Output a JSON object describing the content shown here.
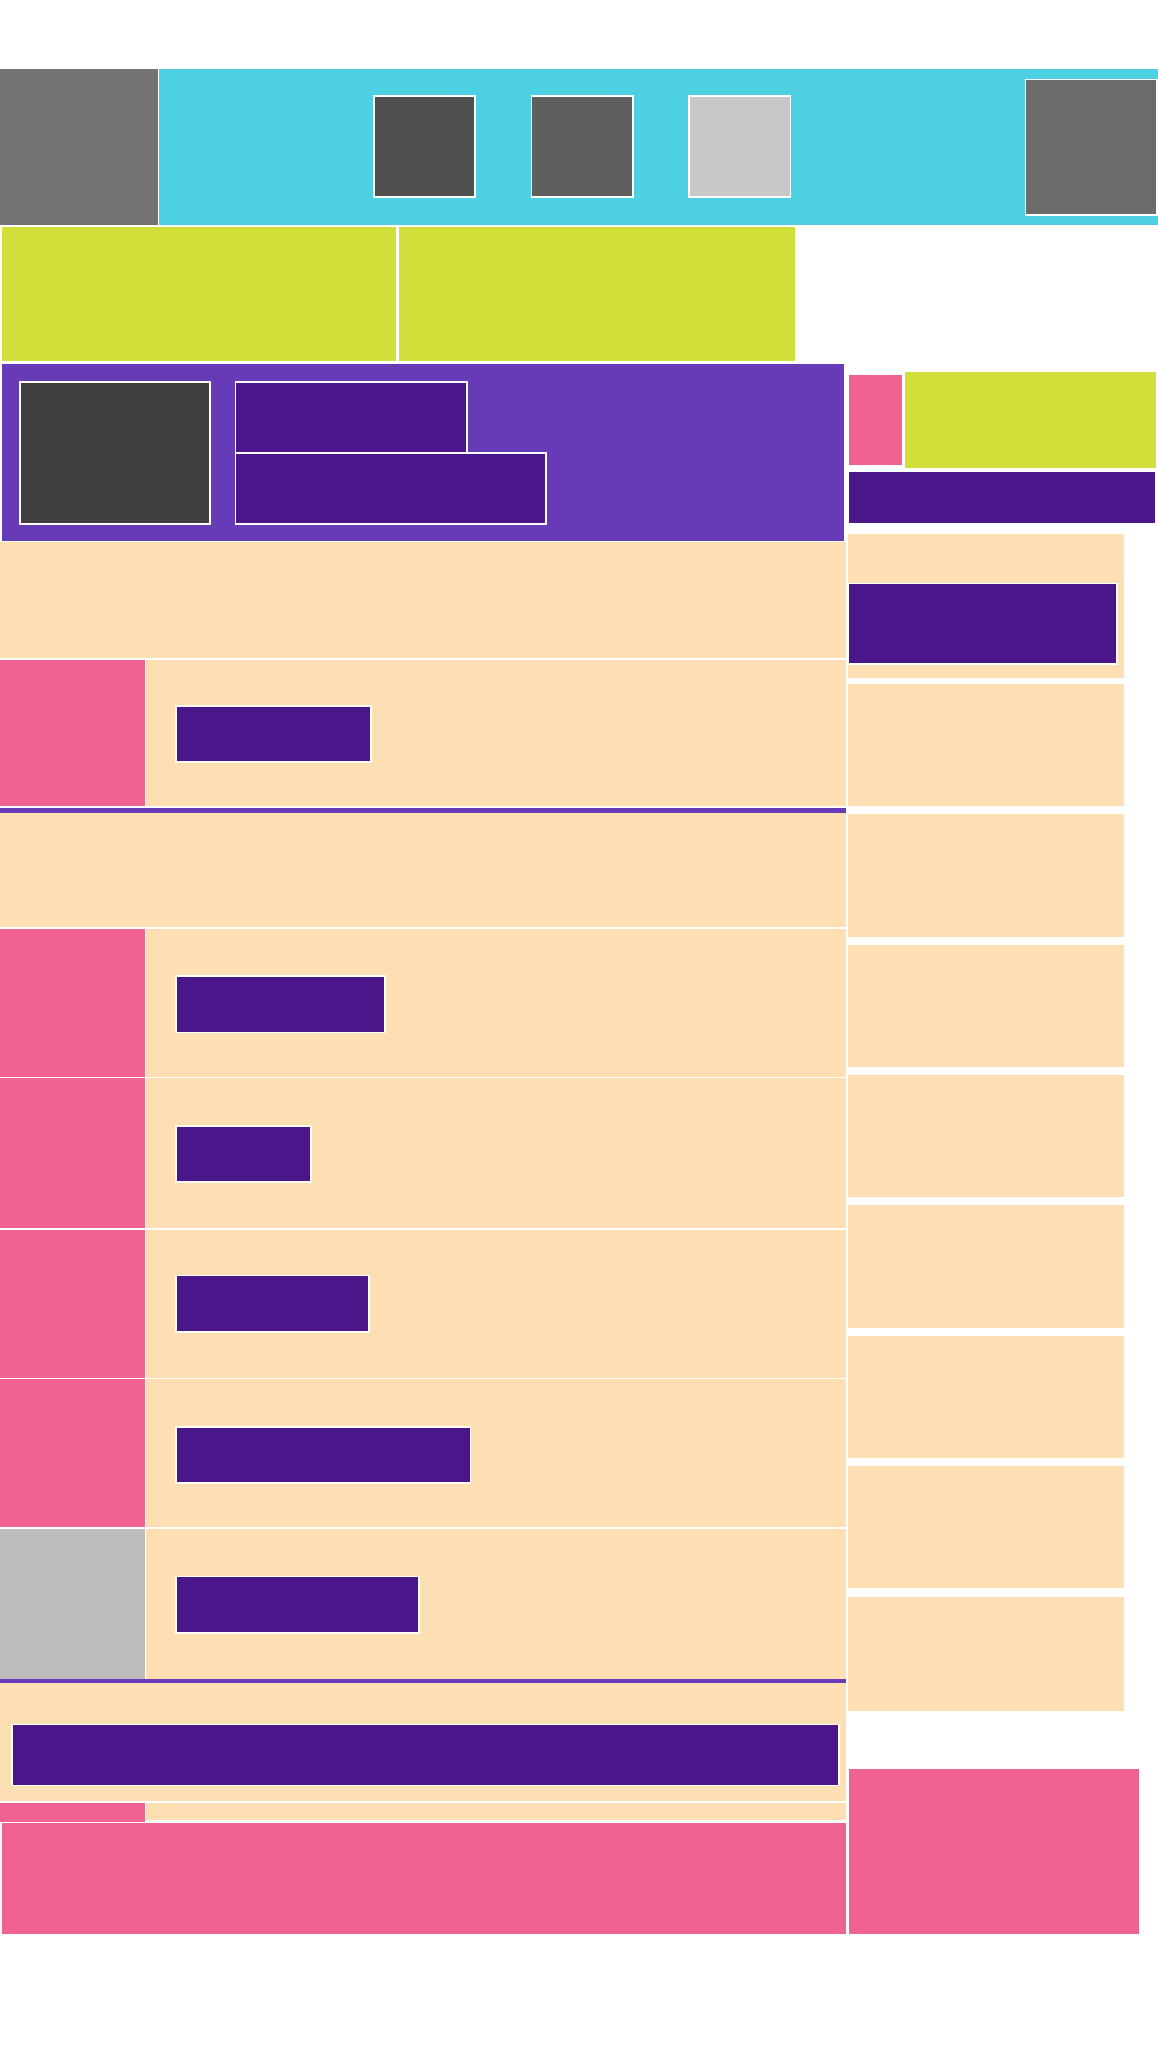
{
  "theme": {
    "teal": "#4dd0e1",
    "lime": "#d2df3b",
    "purple": "#673ab7",
    "deep": "#4a168a",
    "peach": "#fddfb3",
    "pink": "#f06291",
    "gray": "#bdbdbd"
  },
  "header": {
    "nav_icons": [
      "home-icon",
      "grid-icon",
      "settings-icon"
    ],
    "profile_icon": "avatar-icon"
  },
  "tabs": [
    "",
    ""
  ],
  "hero": {
    "title": "",
    "subtitle": ""
  },
  "list": {
    "items": [
      {
        "label": ""
      },
      {
        "label": ""
      },
      {
        "label": ""
      },
      {
        "label": ""
      },
      {
        "label": ""
      },
      {
        "label": ""
      }
    ],
    "footer_label": ""
  },
  "sidebar": {
    "header_label": "",
    "card_label": ""
  }
}
